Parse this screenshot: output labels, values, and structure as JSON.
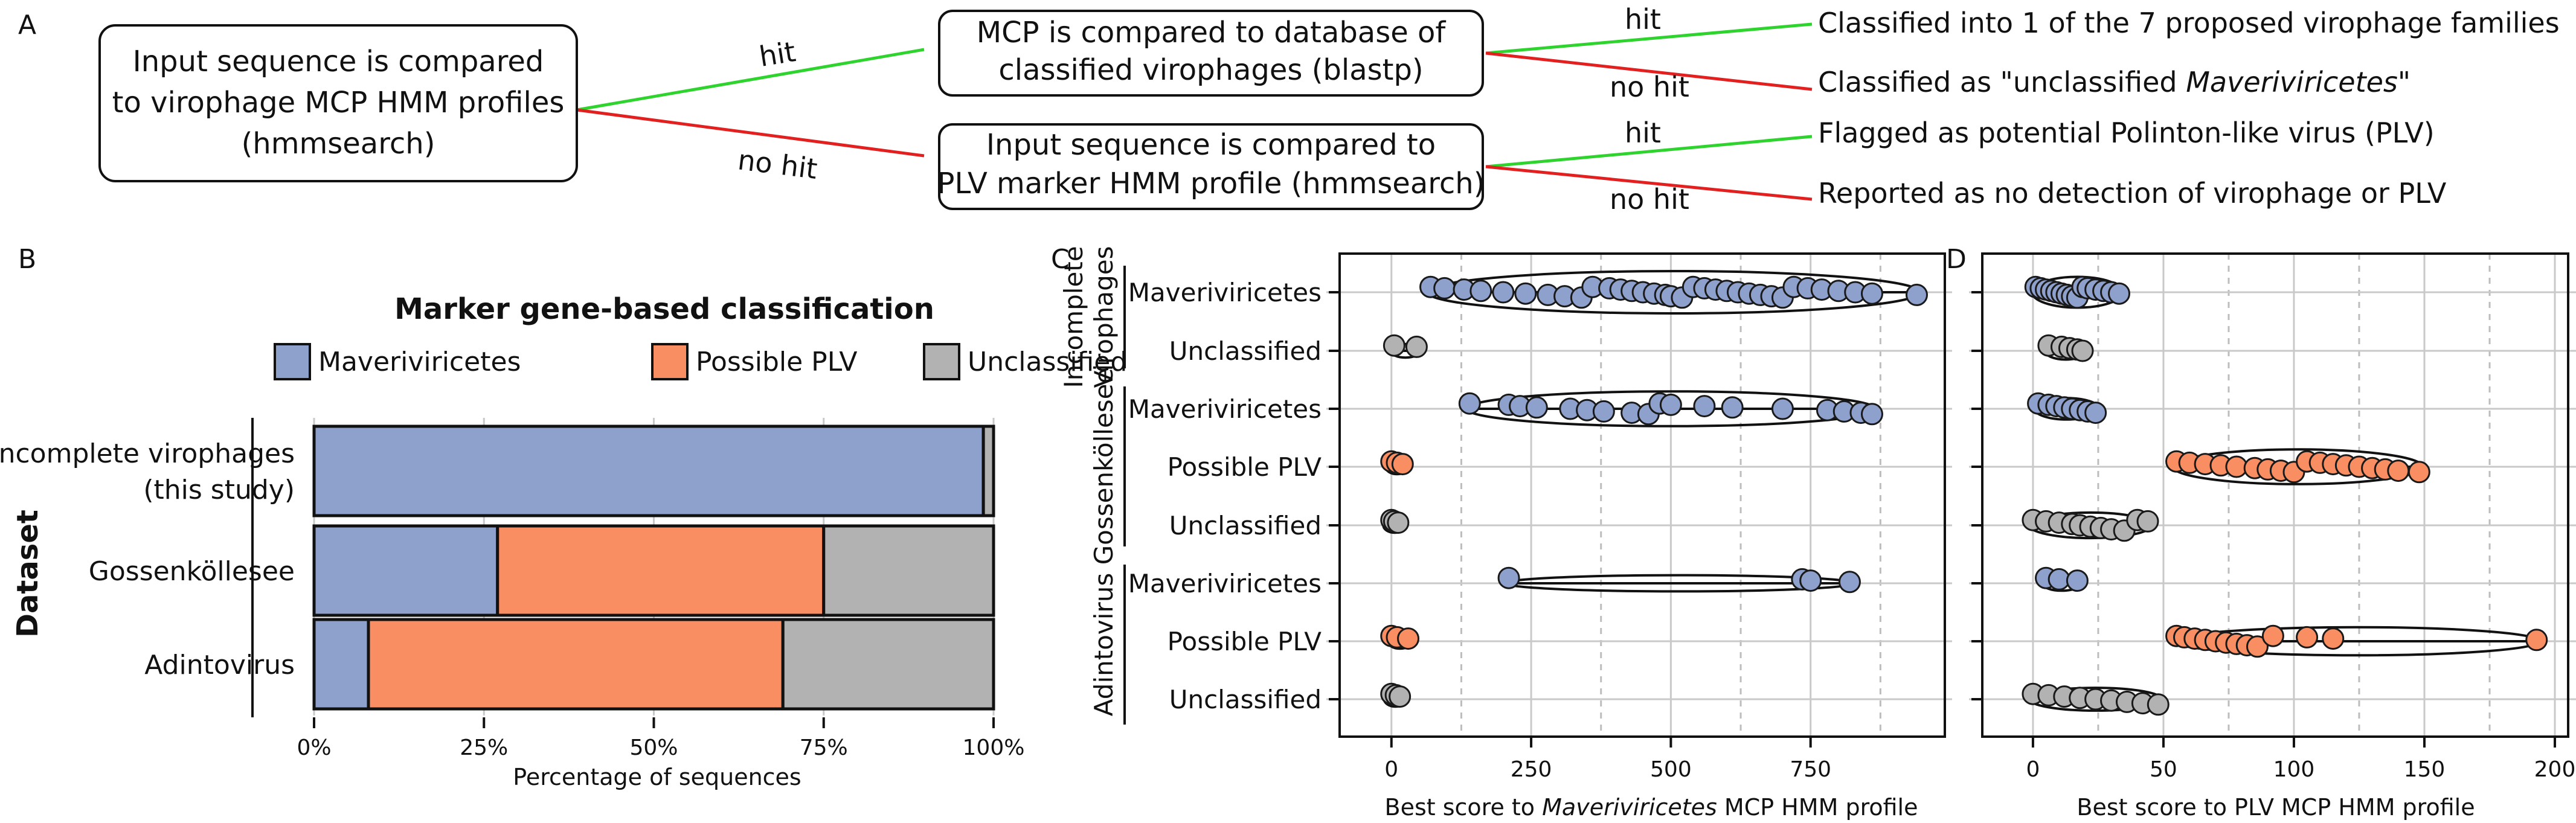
{
  "panel_labels": {
    "a": "A",
    "b": "B",
    "c": "C",
    "d": "D"
  },
  "flow": {
    "start_box": [
      "Input sequence is compared",
      "to virophage MCP HMM profiles",
      "(hmmsearch)"
    ],
    "mcp_box": [
      "MCP is compared to database of",
      "classified virophages (blastp)"
    ],
    "plv_box": [
      "Input sequence is compared to",
      "PLV marker HMM profile (hmmsearch)"
    ],
    "hit": "hit",
    "no_hit": "no hit",
    "out_families": "Classified into 1 of the 7 proposed virophage families",
    "out_unclassified_prefix": "Classified as \"unclassified ",
    "out_unclassified_italic": "Maveriviricetes",
    "out_unclassified_suffix": "\"",
    "out_plv": "Flagged as potential Polinton-like virus  (PLV)",
    "out_none": "Reported as no detection of virophage or PLV"
  },
  "colors": {
    "maveriviricetes": "#8ea0cc",
    "plv": "#fa8e63",
    "unclassified": "#b2b2b2",
    "hit_line": "#2ed32e",
    "nohit_line": "#e32020"
  },
  "chart_data": [
    {
      "type": "bar",
      "stacked": true,
      "orientation": "horizontal",
      "title": "Marker gene-based classification",
      "xlabel": "Percentage of sequences",
      "ylabel": "Dataset",
      "xlim": [
        0,
        100
      ],
      "xticks": [
        "0%",
        "25%",
        "50%",
        "75%",
        "100%"
      ],
      "categories": [
        "Incomplete virophages\n(this study)",
        "Gossenköllesee",
        "Adintovirus"
      ],
      "category_lines": [
        [
          "Incomplete virophages",
          "(this study)"
        ],
        [
          "Gossenköllesee"
        ],
        [
          "Adintovirus"
        ]
      ],
      "series": [
        {
          "name": "Maveriviricetes",
          "values": [
            98.5,
            27,
            8
          ]
        },
        {
          "name": "Possible PLV",
          "values": [
            0,
            48,
            61
          ]
        },
        {
          "name": "Unclassified",
          "values": [
            1.5,
            25,
            31
          ]
        }
      ],
      "legend": [
        "Maveriviricetes",
        "Possible PLV",
        "Unclassified"
      ]
    },
    {
      "type": "scatter",
      "subtype": "violin with jittered points",
      "xlabel_prefix": "Best score to ",
      "xlabel_italic": "Maveriviricetes",
      "xlabel_suffix": " MCP HMM profile",
      "xlim": [
        -30,
        960
      ],
      "xticks": [
        0,
        250,
        500,
        750
      ],
      "groups": [
        {
          "name": "Incomplete\nVirophages",
          "lines": [
            "Incomplete",
            "Virophages"
          ]
        },
        {
          "name": "Gossenköllesee",
          "lines": [
            "Gossenköllesee"
          ]
        },
        {
          "name": "Adintovirus",
          "lines": [
            "Adintovirus"
          ]
        }
      ],
      "rows": [
        {
          "label": "Maveriviricetes",
          "group": "Incomplete\nVirophages",
          "class": "maveriviricetes",
          "values": [
            70,
            95,
            130,
            160,
            200,
            240,
            280,
            310,
            340,
            360,
            390,
            410,
            430,
            450,
            470,
            490,
            500,
            520,
            540,
            560,
            580,
            600,
            620,
            640,
            660,
            680,
            700,
            720,
            745,
            770,
            800,
            830,
            860,
            940
          ]
        },
        {
          "label": "Unclassified",
          "group": "Incomplete\nVirophages",
          "class": "unclassified",
          "values": [
            5,
            45
          ]
        },
        {
          "label": "Maveriviricetes",
          "group": "Gossenköllesee",
          "class": "maveriviricetes",
          "values": [
            140,
            210,
            230,
            260,
            320,
            350,
            380,
            430,
            460,
            480,
            500,
            560,
            610,
            700,
            780,
            810,
            840,
            860
          ]
        },
        {
          "label": "Possible PLV",
          "group": "Gossenköllesee",
          "class": "plv",
          "values": [
            0,
            10,
            20
          ]
        },
        {
          "label": "Unclassified",
          "group": "Gossenköllesee",
          "class": "unclassified",
          "values": [
            0,
            5,
            12
          ]
        },
        {
          "label": "Maveriviricetes",
          "group": "Adintovirus",
          "class": "maveriviricetes",
          "values": [
            210,
            735,
            750,
            820
          ]
        },
        {
          "label": "Possible PLV",
          "group": "Adintovirus",
          "class": "plv",
          "values": [
            0,
            10,
            30
          ]
        },
        {
          "label": "Unclassified",
          "group": "Adintovirus",
          "class": "unclassified",
          "values": [
            0,
            8,
            15
          ]
        }
      ]
    },
    {
      "type": "scatter",
      "subtype": "violin with jittered points",
      "xlabel": "Best score to PLV MCP HMM profile",
      "xlim": [
        -6,
        200
      ],
      "xticks": [
        0,
        50,
        100,
        150,
        200
      ],
      "rows": [
        {
          "label": "Maveriviricetes",
          "group": "Incomplete\nVirophages",
          "class": "maveriviricetes",
          "values": [
            1,
            3,
            5,
            7,
            9,
            11,
            13,
            15,
            17,
            19,
            21,
            24,
            27,
            30,
            33
          ]
        },
        {
          "label": "Unclassified",
          "group": "Incomplete\nVirophages",
          "class": "unclassified",
          "values": [
            6,
            11,
            14,
            17,
            19
          ]
        },
        {
          "label": "Maveriviricetes",
          "group": "Gossenköllesee",
          "class": "maveriviricetes",
          "values": [
            2,
            6,
            9,
            12,
            15,
            18,
            21,
            24
          ]
        },
        {
          "label": "Possible PLV",
          "group": "Gossenköllesee",
          "class": "plv",
          "values": [
            55,
            60,
            66,
            72,
            78,
            85,
            90,
            95,
            100,
            105,
            110,
            115,
            120,
            125,
            130,
            135,
            140,
            148
          ]
        },
        {
          "label": "Unclassified",
          "group": "Gossenköllesee",
          "class": "unclassified",
          "values": [
            0,
            5,
            10,
            15,
            18,
            22,
            26,
            30,
            35,
            40,
            44
          ]
        },
        {
          "label": "Maveriviricetes",
          "group": "Adintovirus",
          "class": "maveriviricetes",
          "values": [
            5,
            10,
            17
          ]
        },
        {
          "label": "Possible PLV",
          "group": "Adintovirus",
          "class": "plv",
          "values": [
            55,
            58,
            62,
            66,
            70,
            74,
            78,
            82,
            86,
            92,
            105,
            115,
            193
          ]
        },
        {
          "label": "Unclassified",
          "group": "Adintovirus",
          "class": "unclassified",
          "values": [
            0,
            6,
            12,
            18,
            24,
            30,
            36,
            42,
            48
          ]
        }
      ]
    }
  ]
}
